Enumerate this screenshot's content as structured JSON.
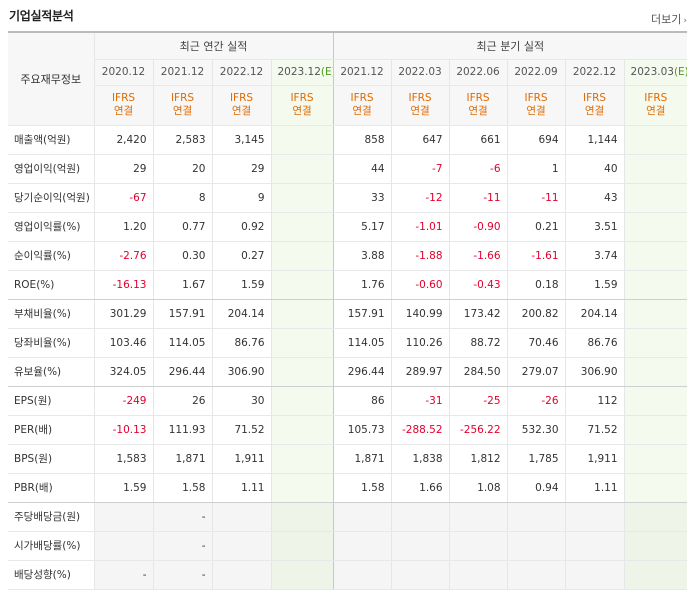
{
  "header": {
    "title": "기업실적분석",
    "more_label": "더보기",
    "more_arrow": "›"
  },
  "table": {
    "row_header": "주요재무정보",
    "group_annual": "최근 연간 실적",
    "group_quarter": "최근 분기 실적",
    "periods": [
      "2020.12",
      "2021.12",
      "2022.12",
      "2023.12",
      "2021.12",
      "2022.03",
      "2022.06",
      "2022.09",
      "2022.12",
      "2023.03"
    ],
    "estimate_suffix": "(E)",
    "ifrs": "IFRS",
    "basis": "연결",
    "rows": [
      {
        "label": "매출액(억원)",
        "values": [
          "2,420",
          "2,583",
          "3,145",
          "",
          "858",
          "647",
          "661",
          "694",
          "1,144",
          ""
        ]
      },
      {
        "label": "영업이익(억원)",
        "values": [
          "29",
          "20",
          "29",
          "",
          "44",
          "-7",
          "-6",
          "1",
          "40",
          ""
        ]
      },
      {
        "label": "당기순이익(억원)",
        "values": [
          "-67",
          "8",
          "9",
          "",
          "33",
          "-12",
          "-11",
          "-11",
          "43",
          ""
        ]
      },
      {
        "label": "영업이익률(%)",
        "values": [
          "1.20",
          "0.77",
          "0.92",
          "",
          "5.17",
          "-1.01",
          "-0.90",
          "0.21",
          "3.51",
          ""
        ]
      },
      {
        "label": "순이익률(%)",
        "values": [
          "-2.76",
          "0.30",
          "0.27",
          "",
          "3.88",
          "-1.88",
          "-1.66",
          "-1.61",
          "3.74",
          ""
        ]
      },
      {
        "label": "ROE(%)",
        "values": [
          "-16.13",
          "1.67",
          "1.59",
          "",
          "1.76",
          "-0.60",
          "-0.43",
          "0.18",
          "1.59",
          ""
        ]
      },
      {
        "label": "부채비율(%)",
        "values": [
          "301.29",
          "157.91",
          "204.14",
          "",
          "157.91",
          "140.99",
          "173.42",
          "200.82",
          "204.14",
          ""
        ]
      },
      {
        "label": "당좌비율(%)",
        "values": [
          "103.46",
          "114.05",
          "86.76",
          "",
          "114.05",
          "110.26",
          "88.72",
          "70.46",
          "86.76",
          ""
        ]
      },
      {
        "label": "유보율(%)",
        "values": [
          "324.05",
          "296.44",
          "306.90",
          "",
          "296.44",
          "289.97",
          "284.50",
          "279.07",
          "306.90",
          ""
        ]
      },
      {
        "label": "EPS(원)",
        "values": [
          "-249",
          "26",
          "30",
          "",
          "86",
          "-31",
          "-25",
          "-26",
          "112",
          ""
        ]
      },
      {
        "label": "PER(배)",
        "values": [
          "-10.13",
          "111.93",
          "71.52",
          "",
          "105.73",
          "-288.52",
          "-256.22",
          "532.30",
          "71.52",
          ""
        ]
      },
      {
        "label": "BPS(원)",
        "values": [
          "1,583",
          "1,871",
          "1,911",
          "",
          "1,871",
          "1,838",
          "1,812",
          "1,785",
          "1,911",
          ""
        ]
      },
      {
        "label": "PBR(배)",
        "values": [
          "1.59",
          "1.58",
          "1.11",
          "",
          "1.58",
          "1.66",
          "1.08",
          "0.94",
          "1.11",
          ""
        ]
      },
      {
        "label": "주당배당금(원)",
        "values": [
          "",
          "-",
          "",
          "",
          "",
          "",
          "",
          "",
          "",
          ""
        ]
      },
      {
        "label": "시가배당률(%)",
        "values": [
          "",
          "-",
          "",
          "",
          "",
          "",
          "",
          "",
          "",
          ""
        ]
      },
      {
        "label": "배당성향(%)",
        "values": [
          "-",
          "-",
          "",
          "",
          "",
          "",
          "",
          "",
          "",
          ""
        ]
      }
    ]
  }
}
